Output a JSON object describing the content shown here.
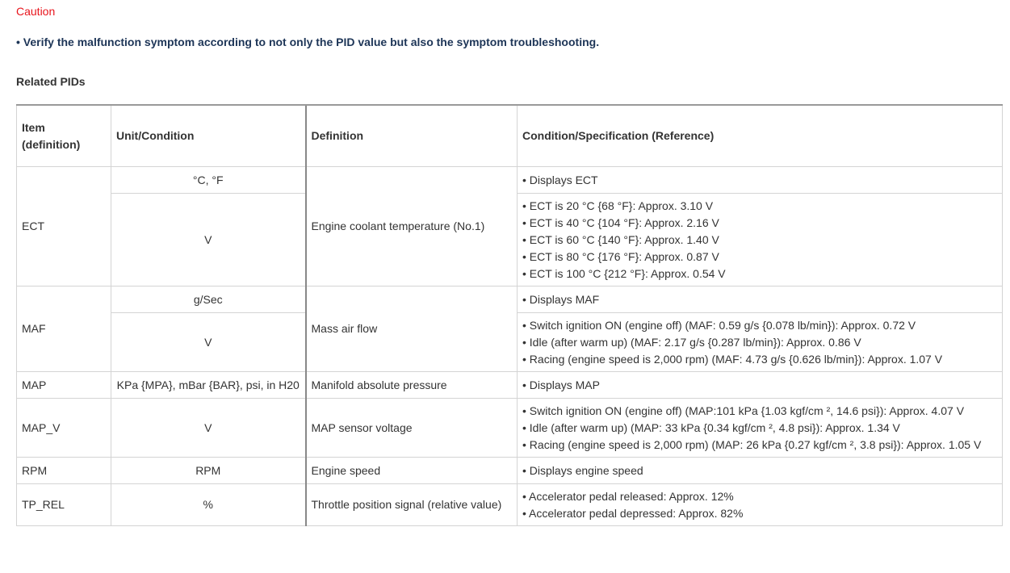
{
  "caution": {
    "title": "Caution",
    "text": "• Verify the malfunction symptom according to not only the PID value but also the symptom troubleshooting."
  },
  "section_title": "Related PIDs",
  "table": {
    "header": [
      "Item (definition)",
      "Unit/Condition",
      "Definition",
      "Condition/Specification (Reference)"
    ],
    "rows": [
      {
        "item": "ECT",
        "definition": "Engine coolant temperature (No.1)",
        "sub": [
          {
            "unit": "°C, °F",
            "spec": [
              "• Displays ECT"
            ]
          },
          {
            "unit": "V",
            "spec": [
              "• ECT is 20 °C {68 °F}: Approx. 3.10 V",
              "• ECT is 40 °C {104 °F}: Approx. 2.16 V",
              "• ECT is 60 °C {140 °F}: Approx. 1.40 V",
              "• ECT is 80 °C {176 °F}: Approx. 0.87 V",
              "• ECT is 100 °C {212 °F}: Approx. 0.54 V"
            ]
          }
        ]
      },
      {
        "item": "MAF",
        "definition": "Mass air flow",
        "sub": [
          {
            "unit": "g/Sec",
            "spec": [
              "• Displays MAF"
            ]
          },
          {
            "unit": "V",
            "spec": [
              "• Switch ignition ON (engine off) (MAF: 0.59 g/s {0.078 lb/min}): Approx. 0.72 V",
              "• Idle (after warm up) (MAF: 2.17 g/s {0.287 lb/min}): Approx. 0.86 V",
              "• Racing (engine speed is 2,000 rpm) (MAF: 4.73 g/s {0.626 lb/min}): Approx. 1.07 V"
            ]
          }
        ]
      },
      {
        "item": "MAP",
        "definition": "Manifold absolute pressure",
        "sub": [
          {
            "unit": "KPa {MPA}, mBar {BAR}, psi, in H20",
            "spec": [
              "• Displays MAP"
            ]
          }
        ]
      },
      {
        "item": "MAP_V",
        "definition": "MAP sensor voltage",
        "sub": [
          {
            "unit": "V",
            "spec": [
              "• Switch ignition ON (engine off) (MAP:101 kPa {1.03 kgf/cm ², 14.6 psi}): Approx. 4.07 V",
              "• Idle (after warm up) (MAP: 33 kPa {0.34 kgf/cm ², 4.8 psi}): Approx. 1.34 V",
              "• Racing (engine speed is 2,000 rpm) (MAP: 26 kPa {0.27 kgf/cm ², 3.8 psi}): Approx. 1.05 V"
            ]
          }
        ]
      },
      {
        "item": "RPM",
        "definition": "Engine speed",
        "sub": [
          {
            "unit": "RPM",
            "spec": [
              "• Displays engine speed"
            ]
          }
        ]
      },
      {
        "item": "TP_REL",
        "definition": "Throttle position signal (relative value)",
        "sub": [
          {
            "unit": "%",
            "spec": [
              "• Accelerator pedal released: Approx. 12%",
              "• Accelerator pedal depressed: Approx. 82%"
            ]
          }
        ]
      }
    ]
  }
}
